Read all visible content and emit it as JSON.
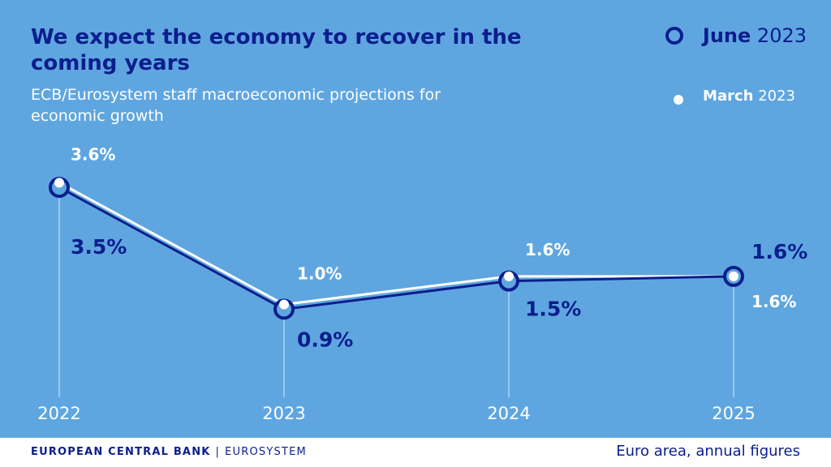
{
  "header": {
    "title": "We expect the economy to recover in the coming years",
    "subtitle": "ECB/Eurosystem staff macroeconomic projections for economic growth"
  },
  "legend": {
    "june_month": "June",
    "june_year": "2023",
    "march_month": "March",
    "march_year": "2023"
  },
  "footer": {
    "brand": "EUROPEAN CENTRAL BANK",
    "separator": "|",
    "system": "EUROSYSTEM",
    "note": "Euro area, annual figures"
  },
  "colors": {
    "background": "#5fa6e0",
    "june": "#0a1e8c",
    "march": "#ffffff",
    "dropline": "#d6e8f8"
  },
  "chart_data": {
    "type": "line",
    "categories": [
      "2022",
      "2023",
      "2024",
      "2025"
    ],
    "ylim": [
      0.3,
      3.9
    ],
    "series": [
      {
        "name": "June 2023",
        "values": [
          3.5,
          0.9,
          1.5,
          1.6
        ],
        "labels": [
          "3.5%",
          "0.9%",
          "1.5%",
          "1.6%"
        ],
        "color": "#0a1e8c"
      },
      {
        "name": "March 2023",
        "values": [
          3.6,
          1.0,
          1.6,
          1.6
        ],
        "labels": [
          "3.6%",
          "1.0%",
          "1.6%",
          "1.6%"
        ],
        "color": "#ffffff"
      }
    ]
  }
}
